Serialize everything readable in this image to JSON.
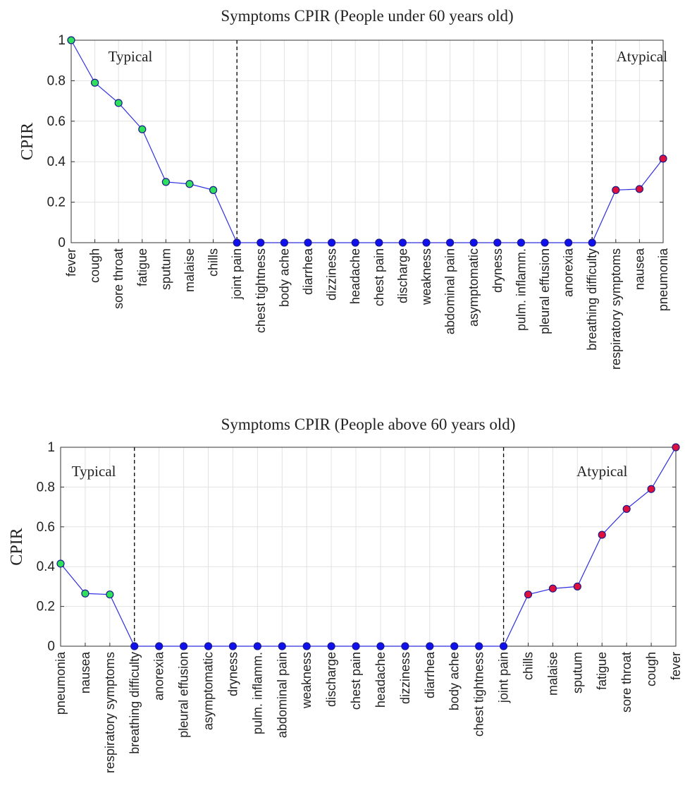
{
  "chart_data": [
    {
      "type": "line",
      "title": "Symptoms CPIR (People under 60 years old)",
      "ylabel": "CPIR",
      "xlabel": "",
      "ylim": [
        0,
        1
      ],
      "yticks": [
        "0",
        "0.2",
        "0.4",
        "0.6",
        "0.8",
        "1"
      ],
      "grid": true,
      "categories": [
        "fever",
        "cough",
        "sore throat",
        "fatigue",
        "sputum",
        "malaise",
        "chills",
        "joint pain",
        "chest tightness",
        "body ache",
        "diarrhea",
        "dizziness",
        "headache",
        "chest pain",
        "discharge",
        "weakness",
        "abdominal pain",
        "asymptomatic",
        "dryness",
        "pulm. inflamm.",
        "pleural effusion",
        "anorexia",
        "breathing difficulty",
        "respiratory symptoms",
        "nausea",
        "pneumonia"
      ],
      "values": [
        1.0,
        0.79,
        0.69,
        0.56,
        0.3,
        0.29,
        0.26,
        0,
        0,
        0,
        0,
        0,
        0,
        0,
        0,
        0,
        0,
        0,
        0,
        0,
        0,
        0,
        0,
        0.26,
        0.265,
        0.415
      ],
      "marker_groups": [
        "typical",
        "typical",
        "typical",
        "typical",
        "typical",
        "typical",
        "typical",
        "zero",
        "zero",
        "zero",
        "zero",
        "zero",
        "zero",
        "zero",
        "zero",
        "zero",
        "zero",
        "zero",
        "zero",
        "zero",
        "zero",
        "zero",
        "zero",
        "atypical",
        "atypical",
        "atypical"
      ],
      "dividers": [
        7,
        22
      ],
      "annotations": [
        {
          "text": "Typical",
          "x_index": 2.5,
          "y": 0.92
        },
        {
          "text": "Atypical",
          "x_index": 24.1,
          "y": 0.92
        }
      ]
    },
    {
      "type": "line",
      "title": "Symptoms CPIR (People above 60 years old)",
      "ylabel": "CPIR",
      "xlabel": "",
      "ylim": [
        0,
        1
      ],
      "yticks": [
        "0",
        "0.2",
        "0.4",
        "0.6",
        "0.8",
        "1"
      ],
      "grid": true,
      "categories": [
        "pneumonia",
        "nausea",
        "respiratory symptoms",
        "breathing difficulty",
        "anorexia",
        "pleural effusion",
        "asymptomatic",
        "dryness",
        "pulm. inflamm.",
        "abdominal pain",
        "weakness",
        "discharge",
        "chest pain",
        "headache",
        "dizziness",
        "diarrhea",
        "body ache",
        "chest tightness",
        "joint pain",
        "chills",
        "malaise",
        "sputum",
        "fatigue",
        "sore throat",
        "cough",
        "fever"
      ],
      "values": [
        0.415,
        0.265,
        0.26,
        0,
        0,
        0,
        0,
        0,
        0,
        0,
        0,
        0,
        0,
        0,
        0,
        0,
        0,
        0,
        0,
        0.26,
        0.29,
        0.3,
        0.56,
        0.69,
        0.79,
        1.0
      ],
      "marker_groups": [
        "typical",
        "typical",
        "typical",
        "zero",
        "zero",
        "zero",
        "zero",
        "zero",
        "zero",
        "zero",
        "zero",
        "zero",
        "zero",
        "zero",
        "zero",
        "zero",
        "zero",
        "zero",
        "zero",
        "atypical",
        "atypical",
        "atypical",
        "atypical",
        "atypical",
        "atypical",
        "atypical"
      ],
      "dividers": [
        3,
        18
      ],
      "annotations": [
        {
          "text": "Typical",
          "x_index": 1.35,
          "y": 0.88
        },
        {
          "text": "Atypical",
          "x_index": 22.0,
          "y": 0.88
        }
      ]
    }
  ],
  "colors": {
    "line": "#2f2fe0",
    "marker_edge": "#1a1a8c",
    "typical_marker": "#2ee05a",
    "atypical_marker": "#e0103c",
    "zero_marker": "#1010ee"
  }
}
